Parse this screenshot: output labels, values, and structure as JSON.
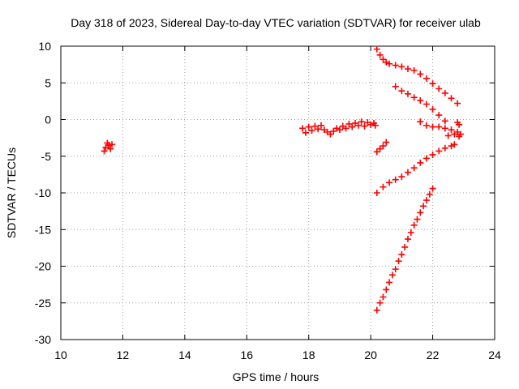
{
  "chart_data": {
    "type": "scatter",
    "title": "Day 318 of 2023, Sidereal Day-to-day VTEC variation (SDTVAR) for receiver ulab",
    "xlabel": "GPS time / hours",
    "ylabel": "SDTVAR / TECUs",
    "xlim": [
      10,
      24
    ],
    "ylim": [
      -30,
      10
    ],
    "xticks": [
      "10",
      "12",
      "14",
      "16",
      "18",
      "20",
      "22",
      "24"
    ],
    "yticks": [
      "10",
      "5",
      "0",
      "-5",
      "-10",
      "-15",
      "-20",
      "-25",
      "-30"
    ],
    "grid": true,
    "marker": "plus",
    "color": "#ff0000",
    "series": [
      {
        "x": [
          11.4,
          11.45,
          11.5,
          11.55,
          11.6,
          11.65
        ],
        "y": [
          -4.3,
          -3.8,
          -3.2,
          -3.5,
          -4.0,
          -3.4
        ]
      },
      {
        "x": [
          17.8,
          17.9,
          18.0,
          18.1,
          18.2,
          18.3,
          18.4,
          18.5,
          18.6,
          18.7,
          18.8,
          18.9,
          19.0,
          19.1,
          19.2,
          19.3,
          19.4,
          19.5,
          19.6,
          19.7,
          19.8,
          19.9,
          20.0,
          20.1,
          20.15
        ],
        "y": [
          -1.2,
          -1.8,
          -1.0,
          -1.5,
          -0.9,
          -1.3,
          -0.8,
          -1.4,
          -1.7,
          -2.0,
          -1.6,
          -1.2,
          -1.4,
          -0.9,
          -1.2,
          -0.6,
          -1.0,
          -0.5,
          -0.8,
          -0.3,
          -0.9,
          -0.4,
          -0.7,
          -0.5,
          -0.8
        ]
      },
      {
        "x": [
          20.2,
          20.3,
          20.4,
          20.5
        ],
        "y": [
          -4.4,
          -4.0,
          -3.6,
          -3.1
        ]
      },
      {
        "x": [
          20.2,
          20.3,
          20.4,
          20.5,
          20.6,
          20.8,
          21.0,
          21.2,
          21.4,
          21.6,
          21.8,
          22.0,
          22.2,
          22.4,
          22.6,
          22.8
        ],
        "y": [
          9.6,
          8.8,
          8.2,
          7.8,
          7.6,
          7.4,
          7.2,
          6.9,
          6.7,
          6.2,
          5.6,
          4.9,
          4.2,
          3.6,
          2.9,
          2.2
        ]
      },
      {
        "x": [
          20.8,
          21.0,
          21.2,
          21.4,
          21.6,
          21.8,
          22.0,
          22.2,
          22.4
        ],
        "y": [
          4.5,
          3.9,
          3.5,
          3.0,
          2.6,
          2.1,
          1.4,
          0.6,
          -0.2
        ]
      },
      {
        "x": [
          21.6,
          21.8,
          22.0,
          22.2,
          22.4,
          22.6,
          22.8,
          22.9
        ],
        "y": [
          -0.3,
          -0.8,
          -1.0,
          -1.0,
          -1.2,
          -1.4,
          -1.7,
          -2.0
        ]
      },
      {
        "x": [
          22.5,
          22.7,
          22.85
        ],
        "y": [
          -2.2,
          -2.0,
          -2.3
        ]
      },
      {
        "x": [
          22.8,
          22.85
        ],
        "y": [
          -0.4,
          -0.7
        ]
      },
      {
        "x": [
          20.2,
          20.4,
          20.6,
          20.8,
          21.0,
          21.2,
          21.4,
          21.6,
          21.8,
          22.0,
          22.2,
          22.4,
          22.6,
          22.7
        ],
        "y": [
          -10.0,
          -9.2,
          -8.6,
          -8.2,
          -7.8,
          -7.2,
          -6.6,
          -5.9,
          -5.3,
          -4.8,
          -4.3,
          -3.9,
          -3.6,
          -3.4
        ]
      },
      {
        "x": [
          20.2,
          20.3,
          20.4,
          20.5,
          20.6,
          20.7,
          20.8,
          20.9,
          21.0,
          21.1,
          21.2,
          21.3,
          21.4,
          21.5,
          21.6,
          21.7,
          21.8,
          21.9,
          22.0
        ],
        "y": [
          -26.0,
          -25.0,
          -24.2,
          -23.2,
          -22.2,
          -21.2,
          -20.4,
          -19.3,
          -18.4,
          -17.4,
          -16.3,
          -15.4,
          -14.4,
          -13.6,
          -12.7,
          -11.8,
          -11.0,
          -10.2,
          -9.4
        ]
      }
    ]
  }
}
